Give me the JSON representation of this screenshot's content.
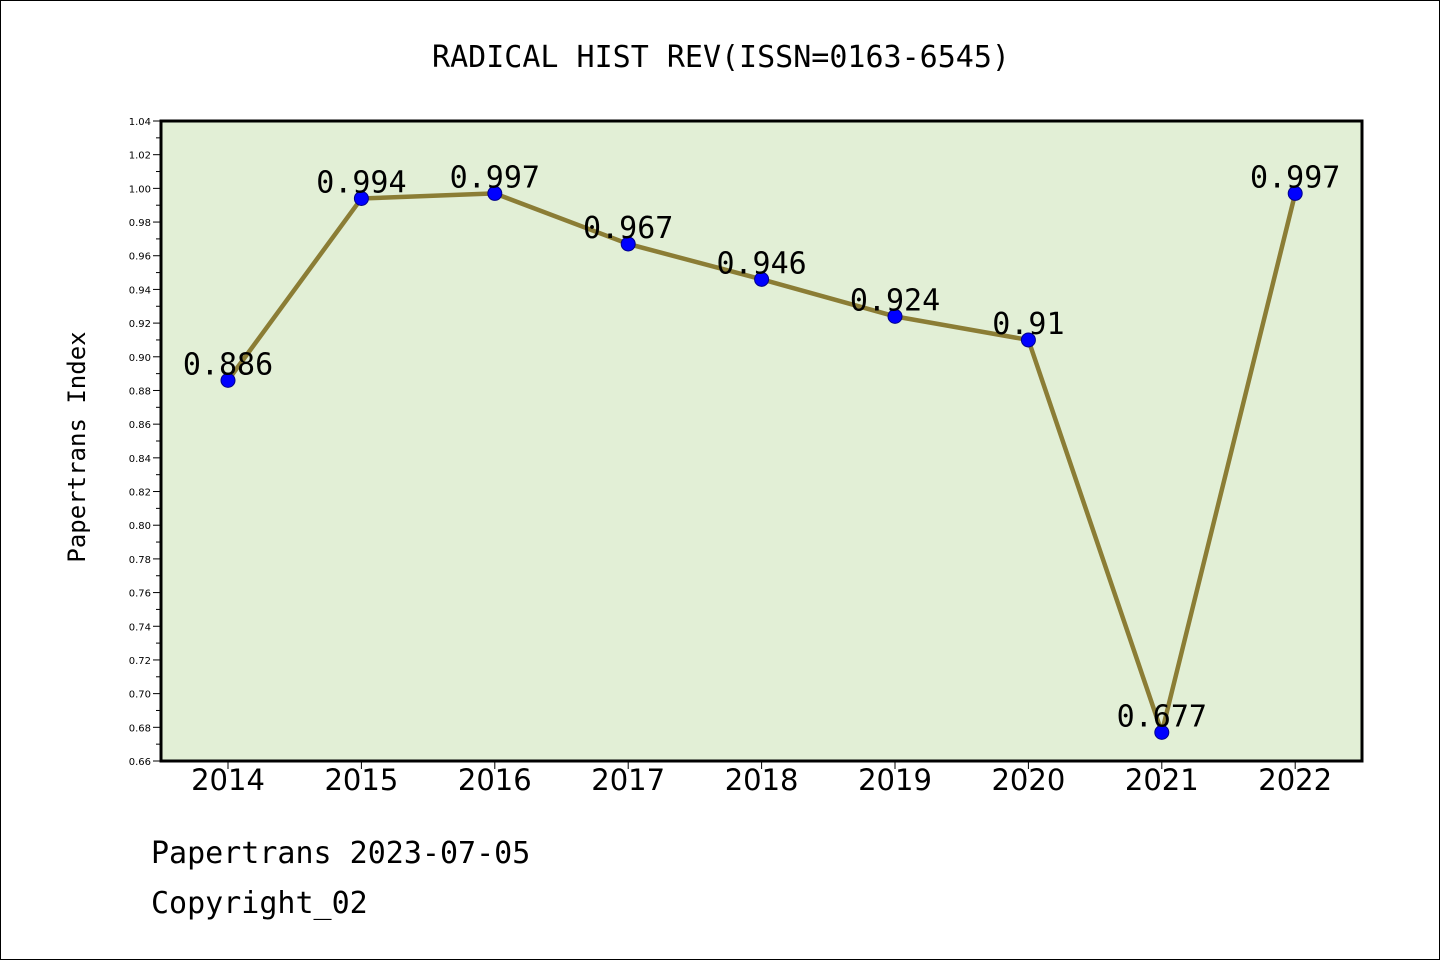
{
  "chart_data": {
    "type": "line",
    "title": "RADICAL HIST REV(ISSN=0163-6545)",
    "xlabel": "",
    "ylabel": "Papertrans Index",
    "categories": [
      "2014",
      "2015",
      "2016",
      "2017",
      "2018",
      "2019",
      "2020",
      "2021",
      "2022"
    ],
    "series": [
      {
        "values": [
          0.886,
          0.994,
          0.997,
          0.967,
          0.946,
          0.924,
          0.91,
          0.677,
          0.997
        ],
        "labels": [
          "0.886",
          "0.994",
          "0.997",
          "0.967",
          "0.946",
          "0.924",
          "0.91",
          "0.677",
          "0.997"
        ]
      }
    ],
    "ylim": [
      0.66,
      1.04
    ],
    "yticks": [
      "0.66",
      "0.68",
      "0.70",
      "0.72",
      "0.74",
      "0.76",
      "0.78",
      "0.80",
      "0.82",
      "0.84",
      "0.86",
      "0.88",
      "0.90",
      "0.92",
      "0.94",
      "0.96",
      "0.98",
      "1.00",
      "1.02",
      "1.04"
    ],
    "grid": false,
    "colors": {
      "plot_background": "#e2efd6",
      "line": "#8b7d35",
      "marker": "#0000ff"
    }
  },
  "footer": {
    "line1": "Papertrans 2023-07-05",
    "line2": "Copyright_02"
  }
}
